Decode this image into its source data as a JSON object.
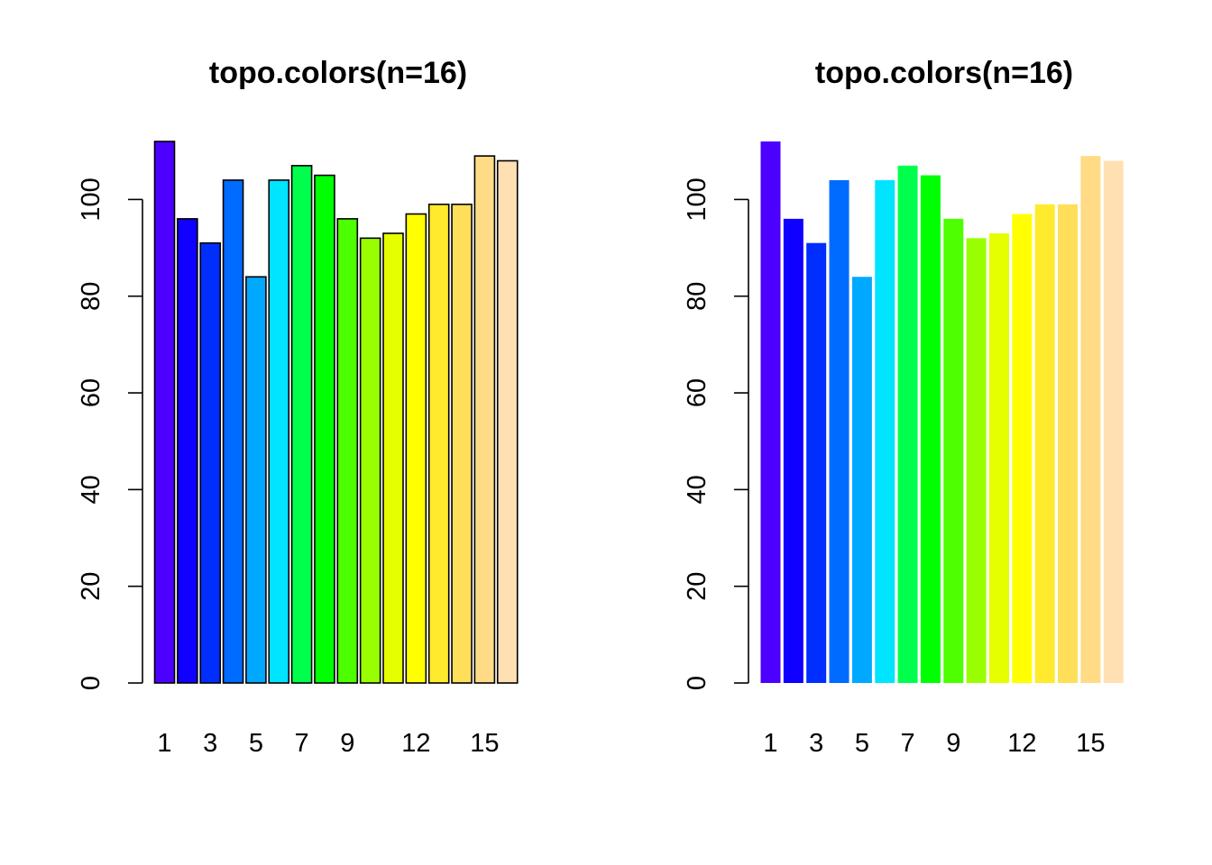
{
  "chart_data": [
    {
      "type": "bar",
      "title": "topo.colors(n=16)",
      "categories": [
        "1",
        "2",
        "3",
        "4",
        "5",
        "6",
        "7",
        "8",
        "9",
        "10",
        "11",
        "12",
        "13",
        "14",
        "15",
        "16"
      ],
      "x_tick_labels": [
        "1",
        "3",
        "5",
        "7",
        "9",
        "12",
        "15"
      ],
      "values": [
        112,
        96,
        91,
        104,
        84,
        104,
        107,
        105,
        96,
        92,
        93,
        97,
        99,
        99,
        109,
        108
      ],
      "colors": [
        "#4C00FF",
        "#0F00FF",
        "#002EFF",
        "#006BFF",
        "#00A8FF",
        "#00E5FF",
        "#00FF4D",
        "#00FF00",
        "#4DFF00",
        "#99FF00",
        "#E6FF00",
        "#FFFF00",
        "#FFEA2D",
        "#FFDE59",
        "#FFDB86",
        "#FFE0B3"
      ],
      "bar_border": "#000000",
      "ylim": [
        0,
        112
      ],
      "y_ticks": [
        0,
        20,
        40,
        60,
        80,
        100
      ],
      "xlabel": "",
      "ylabel": ""
    },
    {
      "type": "bar",
      "title": "topo.colors(n=16)",
      "categories": [
        "1",
        "2",
        "3",
        "4",
        "5",
        "6",
        "7",
        "8",
        "9",
        "10",
        "11",
        "12",
        "13",
        "14",
        "15",
        "16"
      ],
      "x_tick_labels": [
        "1",
        "3",
        "5",
        "7",
        "9",
        "12",
        "15"
      ],
      "values": [
        112,
        96,
        91,
        104,
        84,
        104,
        107,
        105,
        96,
        92,
        93,
        97,
        99,
        99,
        109,
        108
      ],
      "colors": [
        "#4C00FF",
        "#0F00FF",
        "#002EFF",
        "#006BFF",
        "#00A8FF",
        "#00E5FF",
        "#00FF4D",
        "#00FF00",
        "#4DFF00",
        "#99FF00",
        "#E6FF00",
        "#FFFF00",
        "#FFEA2D",
        "#FFDE59",
        "#FFDB86",
        "#FFE0B3"
      ],
      "bar_border": "none",
      "ylim": [
        0,
        112
      ],
      "y_ticks": [
        0,
        20,
        40,
        60,
        80,
        100
      ],
      "xlabel": "",
      "ylabel": ""
    }
  ]
}
